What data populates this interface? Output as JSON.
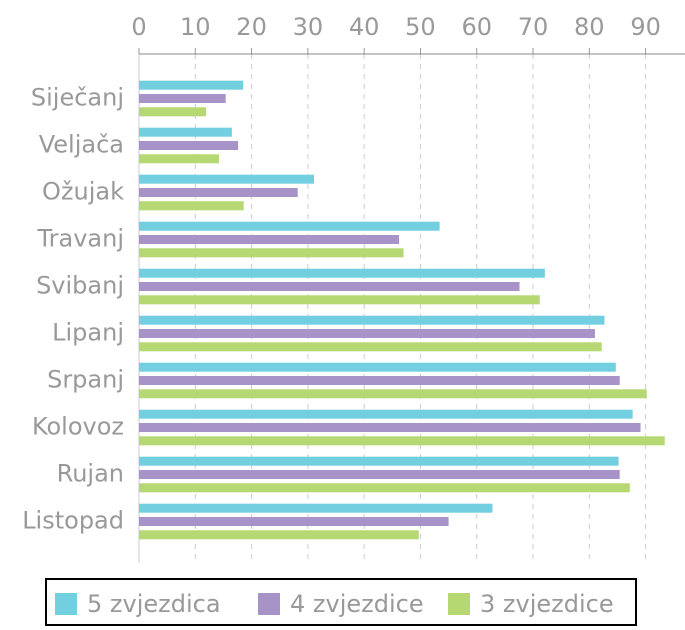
{
  "chart_data": {
    "type": "hbar",
    "categories": [
      "Siječanj",
      "Veljača",
      "Ožujak",
      "Travanj",
      "Svibanj",
      "Lipanj",
      "Srpanj",
      "Kolovoz",
      "Rujan",
      "Listopad"
    ],
    "series": [
      {
        "name": "5 zvjezdica",
        "color": "#72cfe0",
        "values": [
          18.5,
          16.5,
          31.1,
          53.4,
          72.1,
          82.7,
          84.7,
          87.7,
          85.2,
          62.8
        ]
      },
      {
        "name": "4 zvjezdice",
        "color": "#a893c8",
        "values": [
          15.4,
          17.6,
          28.2,
          46.2,
          67.6,
          81.0,
          85.4,
          89.1,
          85.4,
          55.0
        ]
      },
      {
        "name": "3 zvjezdice",
        "color": "#b5d872",
        "values": [
          11.9,
          14.2,
          18.6,
          47.0,
          71.2,
          82.2,
          90.2,
          93.4,
          87.2,
          49.7
        ]
      }
    ],
    "xlim": [
      0,
      97
    ],
    "xticks": [
      0,
      10,
      20,
      30,
      40,
      50,
      60,
      70,
      80,
      90
    ],
    "grid": true
  }
}
